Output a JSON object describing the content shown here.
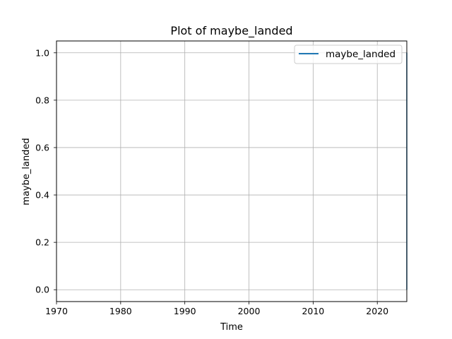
{
  "chart_data": {
    "type": "line",
    "title": "Plot of maybe_landed",
    "xlabel": "Time",
    "ylabel": "maybe_landed",
    "xlim": [
      1970,
      2024.6
    ],
    "ylim": [
      -0.05,
      1.05
    ],
    "x_ticks": [
      1970,
      1980,
      1990,
      2000,
      2010,
      2020
    ],
    "y_ticks": [
      "0.0",
      "0.2",
      "0.4",
      "0.6",
      "0.8",
      "1.0"
    ],
    "grid": true,
    "legend_position": "top-right",
    "series": [
      {
        "name": "maybe_landed",
        "color": "#1f77b4",
        "x": [
          2024.6,
          2024.6,
          2024.6
        ],
        "y": [
          0.0,
          1.0,
          0.0
        ]
      }
    ]
  }
}
